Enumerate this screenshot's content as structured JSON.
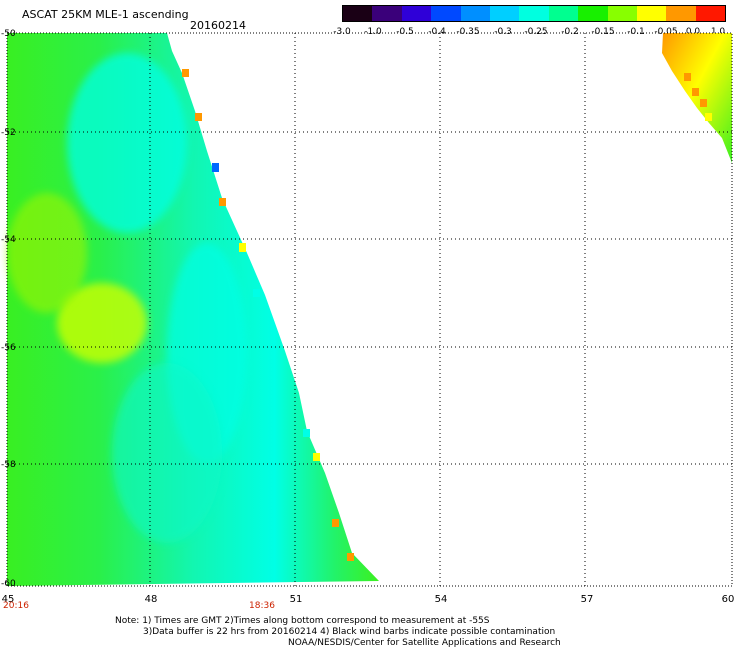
{
  "header": {
    "title": "ASCAT 25KM MLE-1 ascending",
    "date": "20160214"
  },
  "colorbar": {
    "labels": [
      "-3.0",
      "-1.0",
      "-0.5",
      "-0.4",
      "-0.35",
      "-0.3",
      "-0.25",
      "-0.2",
      "-0.15",
      "-0.1",
      "-0.05",
      "0.0",
      "1.0"
    ],
    "colors": [
      "#1a0015",
      "#3a007a",
      "#2f00d8",
      "#0049ff",
      "#008fff",
      "#00cfff",
      "#00ffe0",
      "#00ff90",
      "#18f000",
      "#88ff00",
      "#ffff00",
      "#ff9800",
      "#ff1800"
    ]
  },
  "map": {
    "lat_labels": [
      "-50",
      "-52",
      "-54",
      "-56",
      "-58",
      "-60"
    ],
    "lon_labels": [
      "45",
      "48",
      "51",
      "54",
      "57",
      "60"
    ],
    "time_labels": [
      "20:16",
      "18:36"
    ],
    "background_color": "#ffffff",
    "grid": "dotted"
  },
  "notes": [
    "Note: 1) Times are GMT 2)Times along bottom correspond to measurement at -55S",
    "3)Data buffer is 22 hrs from 20160214 4) Black wind barbs indicate possible contamination",
    "NOAA/NESDIS/Center for Satellite Applications and Research"
  ]
}
